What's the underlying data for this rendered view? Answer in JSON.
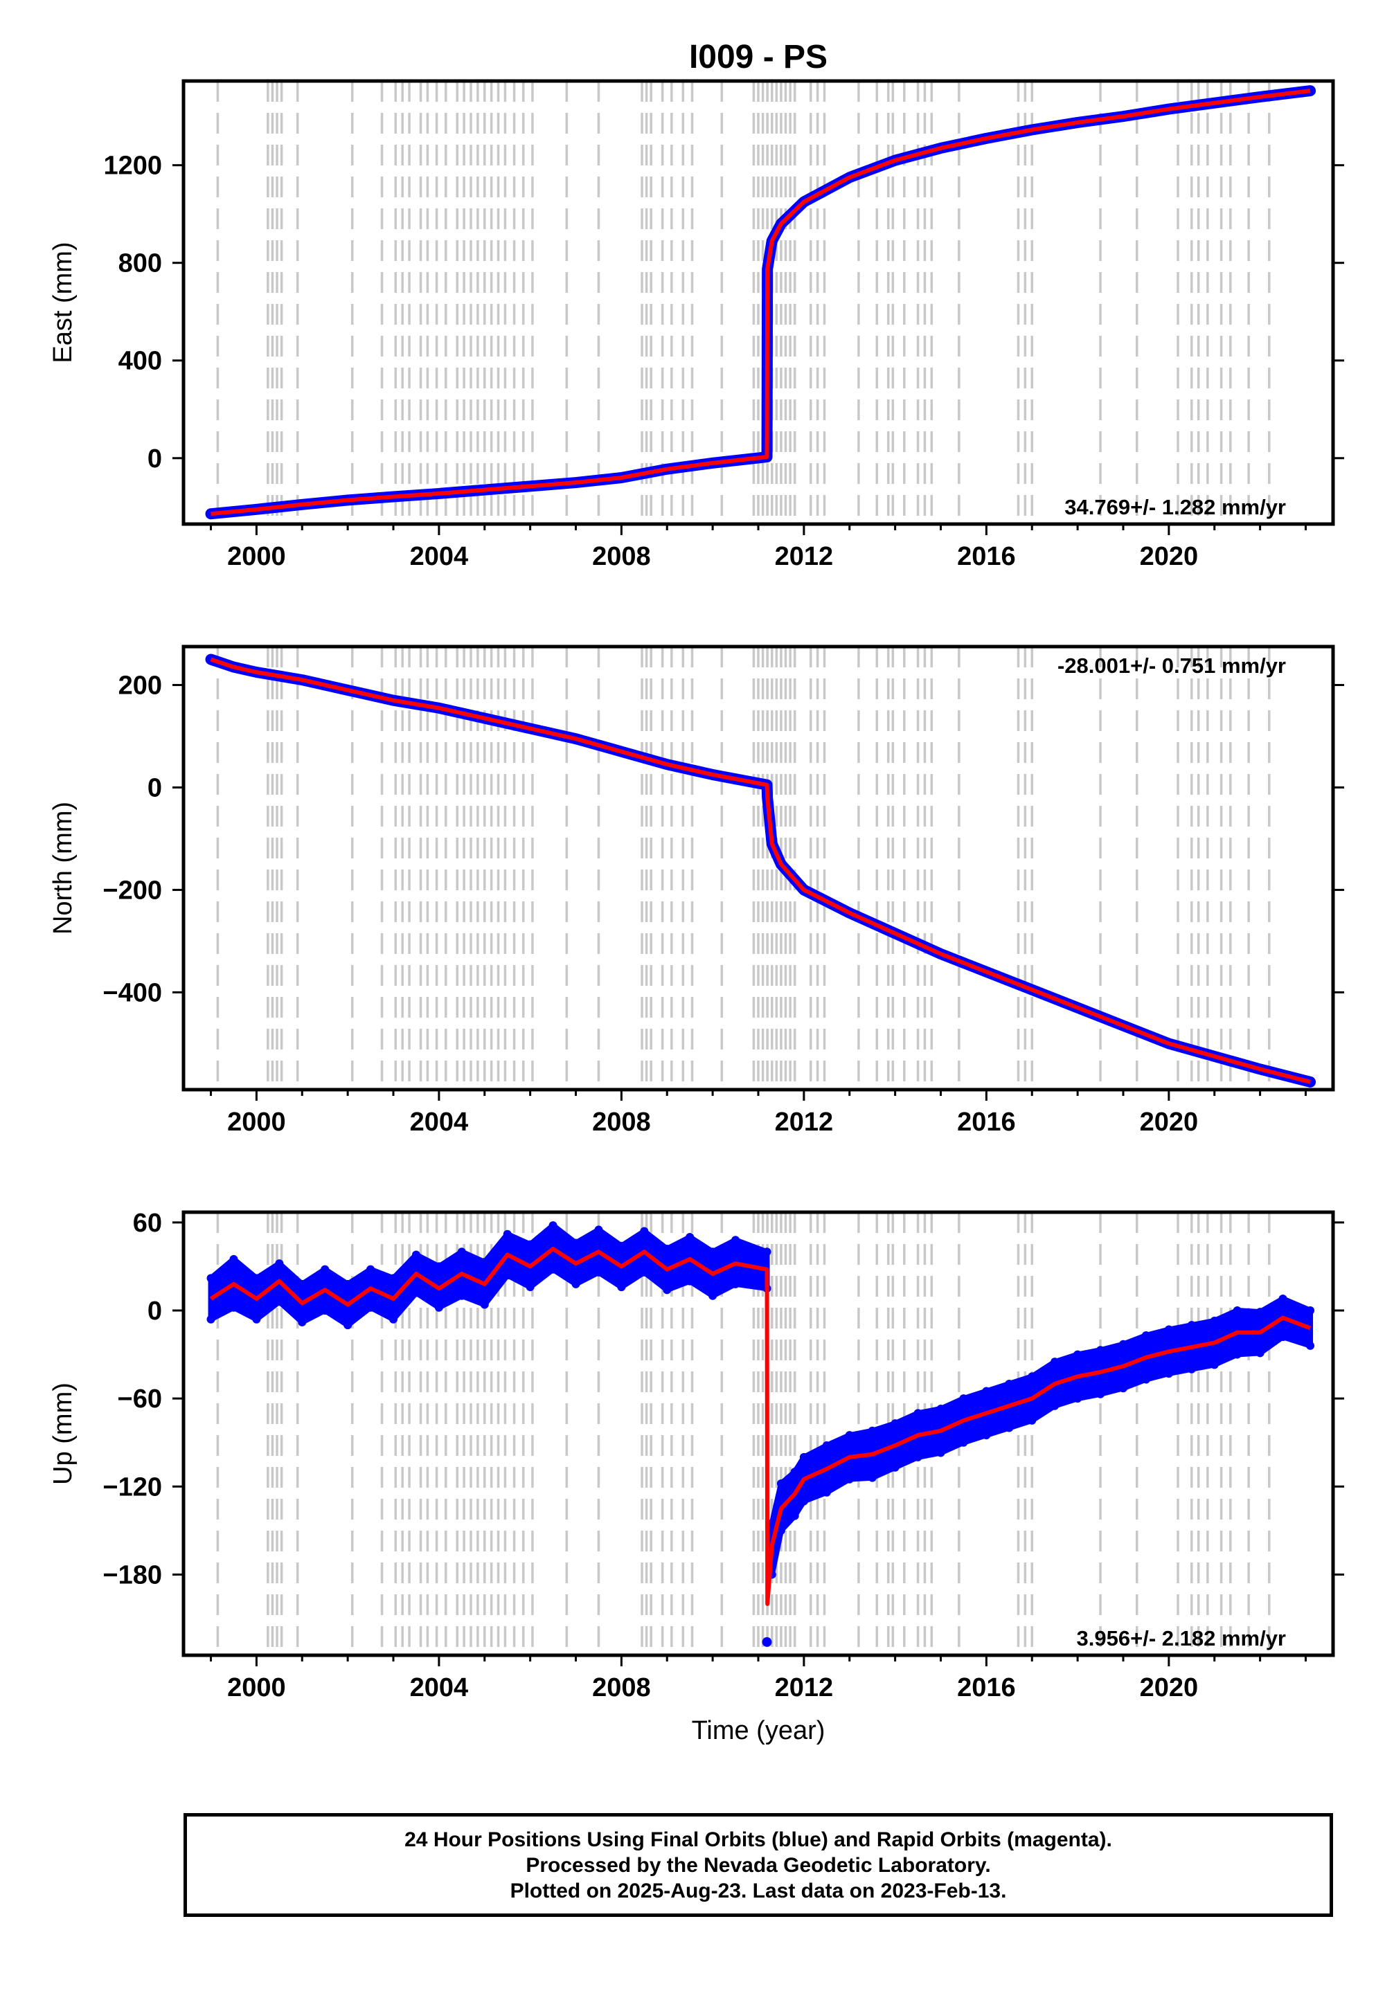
{
  "title": "I009 - PS",
  "colors": {
    "final_orbits": "#0000ff",
    "model": "#ff0000",
    "event_lines": "#c8c8c8",
    "frame": "#000000"
  },
  "footer": {
    "line1": "24 Hour Positions Using Final Orbits (blue) and Rapid Orbits (magenta).",
    "line2": "Processed by the Nevada Geodetic Laboratory.",
    "line3": "Plotted on 2025-Aug-23. Last data on 2023-Feb-13."
  },
  "chart_data": [
    {
      "type": "scatter",
      "component": "east",
      "ylabel": "East (mm)",
      "xlabel": "",
      "xlim": [
        1998.4,
        2023.6
      ],
      "ylim": [
        -270,
        1545
      ],
      "xticks": [
        2000,
        2004,
        2008,
        2012,
        2016,
        2020
      ],
      "yticks": [
        0,
        400,
        800,
        1200
      ],
      "velocity_label": "34.769+/- 1.282 mm/yr",
      "velocity_position": "bottom-right",
      "series": [
        {
          "role": "daily-positions",
          "color": "#0000ff",
          "x": [
            1999.0,
            2000.0,
            2001.0,
            2002.0,
            2003.0,
            2004.0,
            2005.0,
            2006.0,
            2007.0,
            2008.0,
            2009.0,
            2010.0,
            2011.19,
            2011.2,
            2011.3,
            2011.5,
            2012.0,
            2013.0,
            2014.0,
            2015.0,
            2016.0,
            2017.0,
            2018.0,
            2019.0,
            2020.0,
            2021.0,
            2022.0,
            2023.1
          ],
          "y": [
            -228,
            -210,
            -190,
            -172,
            -158,
            -145,
            -130,
            -115,
            -100,
            -80,
            -45,
            -20,
            5,
            775,
            890,
            960,
            1050,
            1150,
            1220,
            1270,
            1310,
            1345,
            1375,
            1400,
            1430,
            1455,
            1480,
            1505
          ]
        },
        {
          "role": "model",
          "color": "#ff0000",
          "x": [
            1999.0,
            2000.0,
            2001.0,
            2002.0,
            2003.0,
            2004.0,
            2005.0,
            2006.0,
            2007.0,
            2008.0,
            2009.0,
            2010.0,
            2011.19,
            2011.2,
            2011.3,
            2011.5,
            2012.0,
            2013.0,
            2014.0,
            2015.0,
            2016.0,
            2017.0,
            2018.0,
            2019.0,
            2020.0,
            2021.0,
            2022.0,
            2023.1
          ],
          "y": [
            -228,
            -210,
            -190,
            -172,
            -158,
            -145,
            -130,
            -115,
            -100,
            -80,
            -45,
            -20,
            5,
            775,
            890,
            960,
            1050,
            1150,
            1220,
            1270,
            1310,
            1345,
            1375,
            1400,
            1430,
            1455,
            1480,
            1505
          ]
        }
      ],
      "event_lines_x": [
        1999.15,
        2000.25,
        2000.35,
        2000.45,
        2000.55,
        2000.9,
        2002.1,
        2002.75,
        2003.05,
        2003.2,
        2003.35,
        2003.6,
        2003.75,
        2003.95,
        2004.15,
        2004.4,
        2004.55,
        2004.7,
        2004.85,
        2005.0,
        2005.15,
        2005.3,
        2005.45,
        2005.65,
        2005.85,
        2006.05,
        2006.8,
        2007.5,
        2008.45,
        2008.55,
        2008.65,
        2008.9,
        2009.1,
        2009.35,
        2009.55,
        2010.2,
        2010.9,
        2011.0,
        2011.1,
        2011.2,
        2011.3,
        2011.4,
        2011.5,
        2011.6,
        2011.7,
        2011.8,
        2012.15,
        2012.3,
        2012.45,
        2013.2,
        2013.6,
        2013.85,
        2013.95,
        2014.2,
        2014.5,
        2014.65,
        2014.8,
        2015.4,
        2016.7,
        2016.85,
        2017.0,
        2018.5,
        2019.3,
        2020.2,
        2020.5,
        2020.65,
        2020.85,
        2021.15,
        2021.35,
        2021.75,
        2022.2
      ]
    },
    {
      "type": "scatter",
      "component": "north",
      "ylabel": "North (mm)",
      "xlabel": "",
      "xlim": [
        1998.4,
        2023.6
      ],
      "ylim": [
        -590,
        275
      ],
      "xticks": [
        2000,
        2004,
        2008,
        2012,
        2016,
        2020
      ],
      "yticks": [
        -400,
        -200,
        0,
        200
      ],
      "velocity_label": "-28.001+/- 0.751 mm/yr",
      "velocity_position": "top-right",
      "series": [
        {
          "role": "daily-positions",
          "color": "#0000ff",
          "x": [
            1999.0,
            1999.5,
            2000.0,
            2001.0,
            2002.0,
            2003.0,
            2004.0,
            2005.0,
            2006.0,
            2007.0,
            2008.0,
            2009.0,
            2010.0,
            2011.19,
            2011.2,
            2011.3,
            2011.5,
            2012.0,
            2013.0,
            2014.0,
            2015.0,
            2016.0,
            2017.0,
            2018.0,
            2019.0,
            2020.0,
            2021.0,
            2022.0,
            2023.1
          ],
          "y": [
            250,
            235,
            225,
            210,
            190,
            170,
            155,
            135,
            115,
            95,
            70,
            45,
            25,
            5,
            -20,
            -110,
            -150,
            -200,
            -245,
            -285,
            -325,
            -360,
            -395,
            -430,
            -465,
            -500,
            -525,
            -550,
            -575
          ]
        },
        {
          "role": "model",
          "color": "#ff0000",
          "x": [
            1999.0,
            1999.5,
            2000.0,
            2001.0,
            2002.0,
            2003.0,
            2004.0,
            2005.0,
            2006.0,
            2007.0,
            2008.0,
            2009.0,
            2010.0,
            2011.19,
            2011.2,
            2011.3,
            2011.5,
            2012.0,
            2013.0,
            2014.0,
            2015.0,
            2016.0,
            2017.0,
            2018.0,
            2019.0,
            2020.0,
            2021.0,
            2022.0,
            2023.1
          ],
          "y": [
            250,
            235,
            225,
            210,
            190,
            170,
            155,
            135,
            115,
            95,
            70,
            45,
            25,
            5,
            -20,
            -110,
            -150,
            -200,
            -245,
            -285,
            -325,
            -360,
            -395,
            -430,
            -465,
            -500,
            -525,
            -550,
            -575
          ]
        }
      ],
      "event_lines_x": [
        1999.15,
        2000.25,
        2000.35,
        2000.45,
        2000.55,
        2000.9,
        2002.1,
        2002.75,
        2003.05,
        2003.2,
        2003.35,
        2003.6,
        2003.75,
        2003.95,
        2004.15,
        2004.4,
        2004.55,
        2004.7,
        2004.85,
        2005.0,
        2005.15,
        2005.3,
        2005.45,
        2005.65,
        2005.85,
        2006.05,
        2006.8,
        2007.5,
        2008.45,
        2008.55,
        2008.65,
        2008.9,
        2009.1,
        2009.35,
        2009.55,
        2010.2,
        2010.9,
        2011.0,
        2011.1,
        2011.2,
        2011.3,
        2011.4,
        2011.5,
        2011.6,
        2011.7,
        2011.8,
        2012.15,
        2012.3,
        2012.45,
        2013.2,
        2013.6,
        2013.85,
        2013.95,
        2014.2,
        2014.5,
        2014.65,
        2014.8,
        2015.4,
        2016.7,
        2016.85,
        2017.0,
        2018.5,
        2019.3,
        2020.2,
        2020.5,
        2020.65,
        2020.85,
        2021.15,
        2021.35,
        2021.75,
        2022.2
      ]
    },
    {
      "type": "scatter",
      "component": "up",
      "ylabel": "Up (mm)",
      "xlabel": "Time (year)",
      "xlim": [
        1998.4,
        2023.6
      ],
      "ylim": [
        -235,
        67
      ],
      "xticks": [
        2000,
        2004,
        2008,
        2012,
        2016,
        2020
      ],
      "yticks": [
        -180,
        -120,
        -60,
        0,
        60
      ],
      "velocity_label": "3.956+/- 2.182 mm/yr",
      "velocity_position": "bottom-right",
      "series": [
        {
          "role": "model",
          "color": "#ff0000",
          "x": [
            1999.0,
            1999.5,
            2000.0,
            2000.5,
            2001.0,
            2001.5,
            2002.0,
            2002.5,
            2003.0,
            2003.5,
            2004.0,
            2004.5,
            2005.0,
            2005.5,
            2006.0,
            2006.5,
            2007.0,
            2007.5,
            2008.0,
            2008.5,
            2009.0,
            2009.5,
            2010.0,
            2010.5,
            2011.19,
            2011.2,
            2011.3,
            2011.5,
            2011.8,
            2012.0,
            2012.5,
            2013.0,
            2013.5,
            2014.0,
            2014.5,
            2015.0,
            2015.5,
            2016.0,
            2016.5,
            2017.0,
            2017.5,
            2018.0,
            2018.5,
            2019.0,
            2019.5,
            2020.0,
            2020.5,
            2021.0,
            2021.5,
            2022.0,
            2022.5,
            2023.1
          ],
          "y": [
            8,
            18,
            8,
            20,
            5,
            14,
            4,
            15,
            8,
            25,
            15,
            25,
            18,
            38,
            30,
            42,
            32,
            40,
            30,
            40,
            28,
            35,
            25,
            32,
            28,
            -200,
            -160,
            -135,
            -125,
            -115,
            -108,
            -100,
            -98,
            -92,
            -85,
            -82,
            -75,
            -70,
            -65,
            -60,
            -50,
            -45,
            -42,
            -38,
            -32,
            -28,
            -25,
            -22,
            -15,
            -15,
            -5,
            -12
          ]
        },
        {
          "role": "daily-positions-upper",
          "color": "#0000ff",
          "x": [
            1999.0,
            1999.5,
            2000.0,
            2000.5,
            2001.0,
            2001.5,
            2002.0,
            2002.5,
            2003.0,
            2003.5,
            2004.0,
            2004.5,
            2005.0,
            2005.5,
            2006.0,
            2006.5,
            2007.0,
            2007.5,
            2008.0,
            2008.5,
            2009.0,
            2009.5,
            2010.0,
            2010.5,
            2011.19,
            2011.3,
            2011.5,
            2011.8,
            2012.0,
            2012.5,
            2013.0,
            2013.5,
            2014.0,
            2014.5,
            2015.0,
            2015.5,
            2016.0,
            2016.5,
            2017.0,
            2017.5,
            2018.0,
            2018.5,
            2019.0,
            2019.5,
            2020.0,
            2020.5,
            2021.0,
            2021.5,
            2022.0,
            2022.5,
            2023.1
          ],
          "y": [
            22,
            35,
            22,
            32,
            18,
            28,
            18,
            28,
            22,
            38,
            30,
            40,
            33,
            52,
            45,
            58,
            46,
            55,
            44,
            54,
            42,
            50,
            40,
            48,
            40,
            -145,
            -118,
            -110,
            -100,
            -92,
            -85,
            -82,
            -77,
            -70,
            -67,
            -60,
            -55,
            -50,
            -45,
            -35,
            -30,
            -27,
            -23,
            -17,
            -13,
            -10,
            -7,
            0,
            -1,
            8,
            0
          ]
        },
        {
          "role": "daily-positions-lower",
          "color": "#0000ff",
          "x": [
            1999.0,
            1999.5,
            2000.0,
            2000.5,
            2001.0,
            2001.5,
            2002.0,
            2002.5,
            2003.0,
            2003.5,
            2004.0,
            2004.5,
            2005.0,
            2005.5,
            2006.0,
            2006.5,
            2007.0,
            2007.5,
            2008.0,
            2008.5,
            2009.0,
            2009.5,
            2010.0,
            2010.5,
            2011.19,
            2011.3,
            2011.5,
            2011.8,
            2012.0,
            2012.5,
            2013.0,
            2013.5,
            2014.0,
            2014.5,
            2015.0,
            2015.5,
            2016.0,
            2016.5,
            2017.0,
            2017.5,
            2018.0,
            2018.5,
            2019.0,
            2019.5,
            2020.0,
            2020.5,
            2021.0,
            2021.5,
            2022.0,
            2022.5,
            2023.1
          ],
          "y": [
            -6,
            2,
            -6,
            6,
            -8,
            0,
            -10,
            2,
            -6,
            12,
            2,
            10,
            4,
            24,
            16,
            28,
            18,
            26,
            16,
            26,
            14,
            20,
            10,
            18,
            15,
            -180,
            -150,
            -140,
            -130,
            -124,
            -115,
            -114,
            -107,
            -100,
            -97,
            -90,
            -85,
            -80,
            -75,
            -65,
            -60,
            -57,
            -53,
            -47,
            -43,
            -40,
            -37,
            -30,
            -29,
            -18,
            -24
          ]
        }
      ],
      "annotation_points": [
        {
          "x": 2011.19,
          "y": -226
        }
      ],
      "event_lines_x": [
        1999.15,
        2000.25,
        2000.35,
        2000.45,
        2000.55,
        2000.9,
        2002.1,
        2002.75,
        2003.05,
        2003.2,
        2003.35,
        2003.6,
        2003.75,
        2003.95,
        2004.15,
        2004.4,
        2004.55,
        2004.7,
        2004.85,
        2005.0,
        2005.15,
        2005.3,
        2005.45,
        2005.65,
        2005.85,
        2006.05,
        2006.8,
        2007.5,
        2008.45,
        2008.55,
        2008.65,
        2008.9,
        2009.1,
        2009.35,
        2009.55,
        2010.2,
        2010.9,
        2011.0,
        2011.1,
        2011.2,
        2011.3,
        2011.4,
        2011.5,
        2011.6,
        2011.7,
        2011.8,
        2012.15,
        2012.3,
        2012.45,
        2013.2,
        2013.6,
        2013.85,
        2013.95,
        2014.2,
        2014.5,
        2014.65,
        2014.8,
        2015.4,
        2016.7,
        2016.85,
        2017.0,
        2018.5,
        2019.3,
        2020.2,
        2020.5,
        2020.65,
        2020.85,
        2021.15,
        2021.35,
        2021.75,
        2022.2
      ]
    }
  ]
}
